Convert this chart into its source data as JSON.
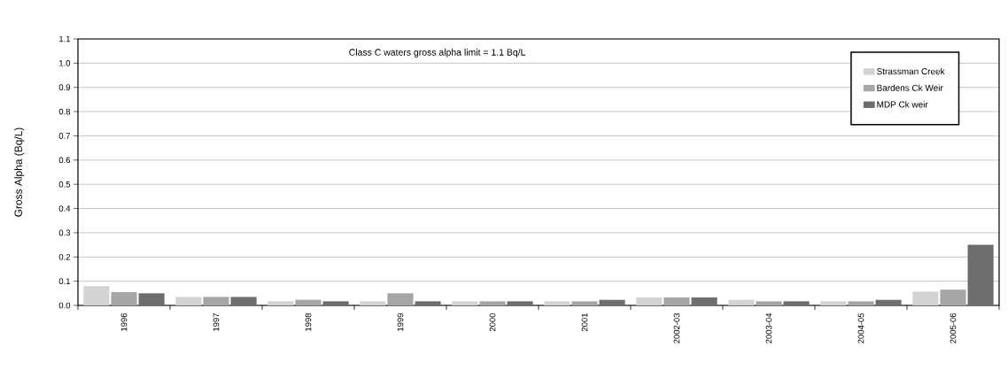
{
  "chart_data": {
    "type": "bar",
    "ylabel": "Gross Alpha (Bq/L)",
    "annotations": [
      "Class C waters gross alpha limit = 1.1 Bq/L"
    ],
    "categories": [
      "1996",
      "1997",
      "1998",
      "1999",
      "2000",
      "2001",
      "2002-03",
      "2003-04",
      "2004-05",
      "2005-06"
    ],
    "series": [
      {
        "name": "Strassman Creek",
        "color": "#d3d3d3",
        "values": [
          0.08,
          0.035,
          0.017,
          0.017,
          0.017,
          0.017,
          0.033,
          0.023,
          0.017,
          0.057
        ]
      },
      {
        "name": "Bardens Ck Weir",
        "color": "#a6a6a6",
        "values": [
          0.055,
          0.035,
          0.023,
          0.05,
          0.017,
          0.017,
          0.033,
          0.017,
          0.017,
          0.065
        ]
      },
      {
        "name": "MDP Ck weir",
        "color": "#6d6d6d",
        "values": [
          0.05,
          0.035,
          0.017,
          0.017,
          0.017,
          0.023,
          0.033,
          0.017,
          0.023,
          0.25
        ]
      }
    ],
    "ylim": [
      0,
      1.1
    ],
    "yticks": [
      {
        "value": 0,
        "label": "0.0"
      },
      0.1,
      0.2,
      0.3,
      0.4,
      0.5,
      0.6,
      0.7,
      0.8,
      0.9,
      {
        "value": 1.0,
        "label": "1.0"
      },
      1.1
    ],
    "grid": "y",
    "legend": "top right"
  }
}
